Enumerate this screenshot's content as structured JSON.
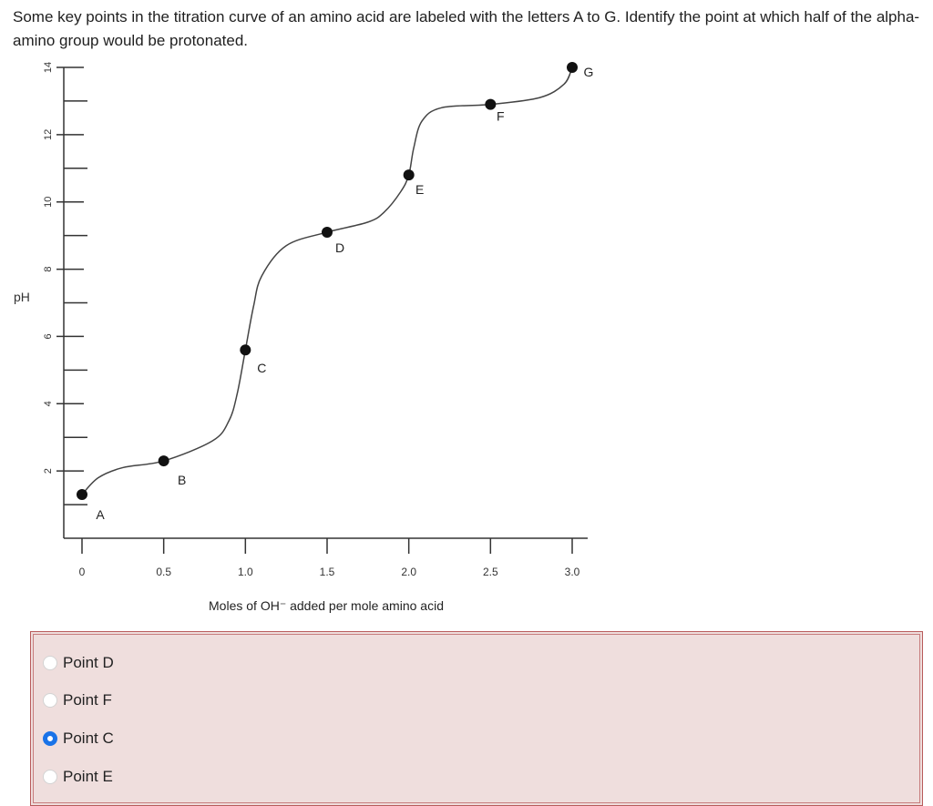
{
  "question": {
    "text": "Some key points in the titration curve of an amino acid are labeled with the letters A to G. Identify the point at which half of the alpha-amino group would be protonated."
  },
  "chart_data": {
    "type": "line",
    "ylabel": "pH",
    "xlabel": "Moles of OH⁻ added per mole amino acid",
    "xlim": [
      0,
      3.0
    ],
    "ylim": [
      0,
      14
    ],
    "x_ticks": [
      "0",
      "0.5",
      "1.0",
      "1.5",
      "2.0",
      "2.5",
      "3.0"
    ],
    "y_ticks": [
      "2",
      "4",
      "6",
      "8",
      "10",
      "12",
      "14"
    ],
    "points": [
      {
        "label": "A",
        "x": 0.0,
        "y": 1.3
      },
      {
        "label": "B",
        "x": 0.5,
        "y": 2.3
      },
      {
        "label": "C",
        "x": 1.0,
        "y": 5.6
      },
      {
        "label": "D",
        "x": 1.5,
        "y": 9.1
      },
      {
        "label": "E",
        "x": 2.0,
        "y": 10.8
      },
      {
        "label": "F",
        "x": 2.5,
        "y": 12.9
      },
      {
        "label": "G",
        "x": 3.0,
        "y": 14.0
      }
    ],
    "curve": [
      [
        0.0,
        1.3
      ],
      [
        0.1,
        1.8
      ],
      [
        0.25,
        2.1
      ],
      [
        0.5,
        2.3
      ],
      [
        0.8,
        2.9
      ],
      [
        0.9,
        3.5
      ],
      [
        0.95,
        4.3
      ],
      [
        1.0,
        5.6
      ],
      [
        1.05,
        6.9
      ],
      [
        1.1,
        7.8
      ],
      [
        1.25,
        8.7
      ],
      [
        1.5,
        9.1
      ],
      [
        1.75,
        9.4
      ],
      [
        1.85,
        9.7
      ],
      [
        1.95,
        10.3
      ],
      [
        2.0,
        10.8
      ],
      [
        2.03,
        11.6
      ],
      [
        2.08,
        12.4
      ],
      [
        2.2,
        12.8
      ],
      [
        2.5,
        12.9
      ],
      [
        2.8,
        13.1
      ],
      [
        2.95,
        13.5
      ],
      [
        3.0,
        14.0
      ]
    ],
    "grid": false
  },
  "answers": {
    "options": [
      {
        "label": "Point D",
        "selected": false
      },
      {
        "label": "Point F",
        "selected": false
      },
      {
        "label": "Point C",
        "selected": true
      },
      {
        "label": "Point E",
        "selected": false
      }
    ]
  },
  "colors": {
    "selected_radio": "#1a73e8",
    "answer_bg": "#efdedd",
    "answer_border": "#b85b5b"
  }
}
